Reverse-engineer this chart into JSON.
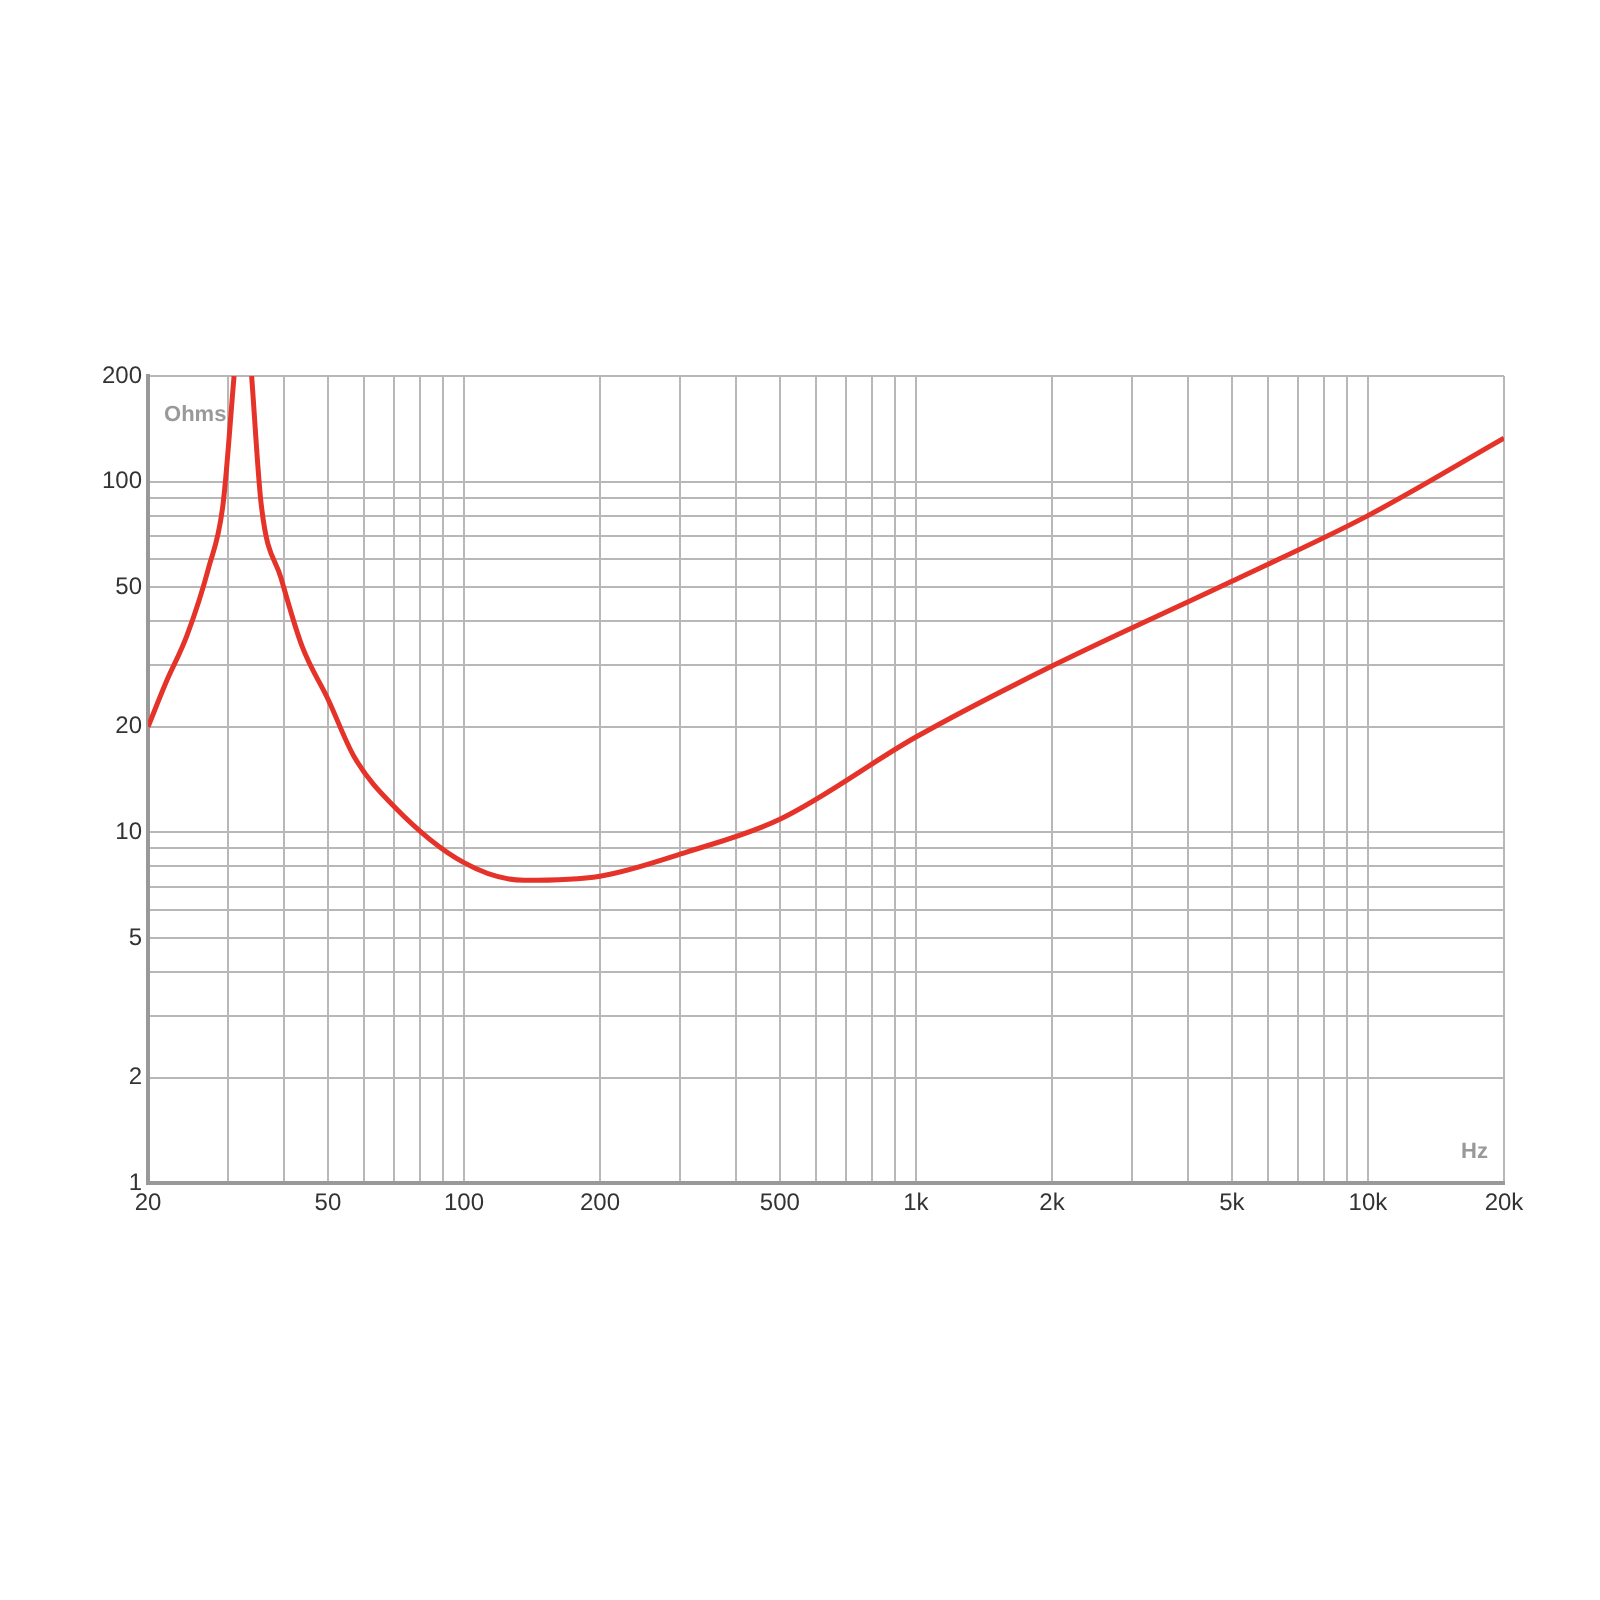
{
  "chart_data": {
    "type": "line",
    "xlabel": "Hz",
    "ylabel": "Ohms",
    "log": "xy",
    "grid": true,
    "legend": false,
    "marker": "none",
    "line_style": "solid",
    "xlim": [
      20,
      20000
    ],
    "ylim": [
      1,
      200
    ],
    "xticks": [
      20,
      {
        "value": 30,
        "label": null
      },
      {
        "value": 40,
        "label": null
      },
      50,
      {
        "value": 60,
        "label": null
      },
      {
        "value": 70,
        "label": null
      },
      {
        "value": 80,
        "label": null
      },
      {
        "value": 90,
        "label": null
      },
      100,
      200,
      {
        "value": 300,
        "label": null
      },
      {
        "value": 400,
        "label": null
      },
      500,
      {
        "value": 600,
        "label": null
      },
      {
        "value": 700,
        "label": null
      },
      {
        "value": 800,
        "label": null
      },
      {
        "value": 900,
        "label": null
      },
      {
        "value": 1000,
        "label": "1k"
      },
      {
        "value": 2000,
        "label": "2k"
      },
      {
        "value": 3000,
        "label": null
      },
      {
        "value": 4000,
        "label": null
      },
      {
        "value": 5000,
        "label": "5k"
      },
      {
        "value": 6000,
        "label": null
      },
      {
        "value": 7000,
        "label": null
      },
      {
        "value": 8000,
        "label": null
      },
      {
        "value": 9000,
        "label": null
      },
      {
        "value": 10000,
        "label": "10k"
      },
      {
        "value": 20000,
        "label": "20k"
      }
    ],
    "yticks": [
      1,
      2,
      {
        "value": 3,
        "label": null
      },
      {
        "value": 4,
        "label": null
      },
      5,
      {
        "value": 6,
        "label": null
      },
      {
        "value": 7,
        "label": null
      },
      {
        "value": 8,
        "label": null
      },
      {
        "value": 9,
        "label": null
      },
      10,
      20,
      {
        "value": 30,
        "label": null
      },
      {
        "value": 40,
        "label": null
      },
      50,
      {
        "value": 60,
        "label": null
      },
      {
        "value": 70,
        "label": null
      },
      {
        "value": 80,
        "label": null
      },
      {
        "value": 90,
        "label": null
      },
      100,
      200
    ],
    "series": [
      {
        "color": "#e5332a",
        "x": [
          20,
          21.9,
          24.4,
          27.2,
          29.3,
          31,
          32.5,
          33.9,
          35.6,
          39.4,
          43.8,
          50,
          57.2,
          70.3,
          100,
          136,
          200,
          312,
          500,
          1000,
          2000,
          5000,
          10000,
          20000
        ],
        "values": [
          20,
          26.7,
          36.5,
          56.5,
          86,
          200,
          null,
          200,
          86,
          53,
          34,
          24,
          16.4,
          11.8,
          8.2,
          7.3,
          7.5,
          8.8,
          10.9,
          18.7,
          29.8,
          52,
          80,
          133
        ]
      }
    ]
  }
}
